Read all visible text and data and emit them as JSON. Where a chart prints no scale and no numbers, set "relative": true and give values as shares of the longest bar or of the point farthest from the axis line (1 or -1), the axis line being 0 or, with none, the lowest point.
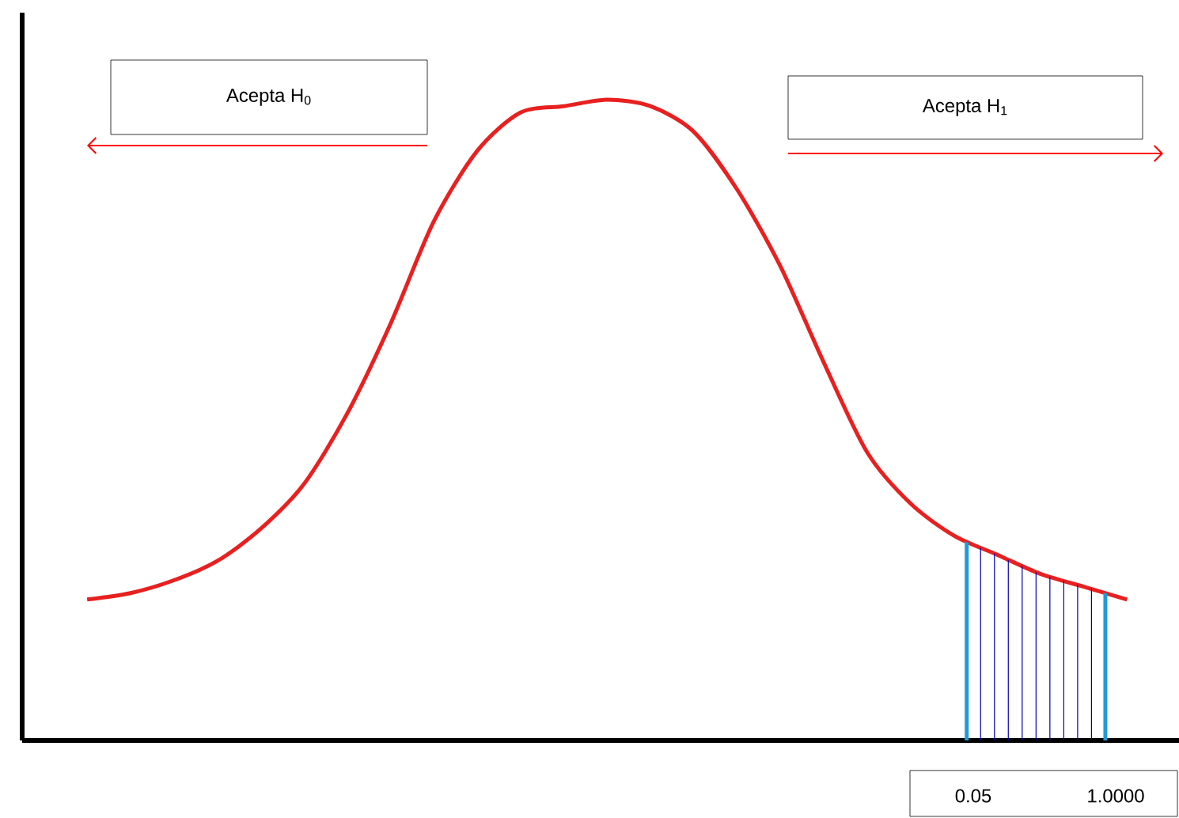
{
  "chart_data": {
    "type": "line",
    "relative": true,
    "color": "#e8201f",
    "categories": [
      null,
      null,
      null,
      null,
      null,
      null,
      null,
      null,
      null,
      null,
      null,
      null,
      null,
      null,
      null,
      null,
      null,
      null,
      null,
      null,
      null,
      null,
      null,
      null,
      null
    ],
    "values": [
      0.22,
      0.23,
      0.25,
      0.28,
      0.33,
      0.4,
      0.51,
      0.65,
      0.81,
      0.92,
      0.98,
      0.99,
      1.0,
      0.99,
      0.95,
      0.86,
      0.74,
      0.59,
      0.45,
      0.37,
      0.32,
      0.29,
      0.26,
      0.24,
      0.22
    ],
    "annotations": [
      "Acepta H$_{0}$",
      "Acepta H$_{1}$",
      "0.05",
      "1.0000"
    ]
  }
}
